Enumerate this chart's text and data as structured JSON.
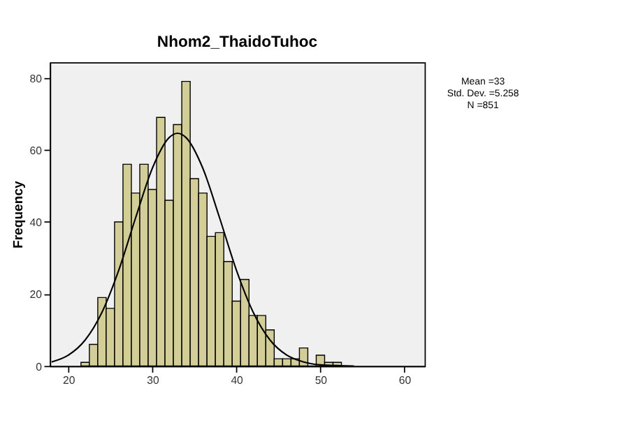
{
  "chart_data": {
    "type": "histogram",
    "title": "Nhom2_ThaidoTuhoc",
    "ylabel": "Frequency",
    "bins": [
      21.5,
      22.5,
      23.5,
      24.5,
      25.5,
      26.5,
      27.5,
      28.5,
      29.5,
      30.5,
      31.5,
      32.5,
      33.5,
      34.5,
      35.5,
      36.5,
      37.5,
      38.5,
      39.5,
      40.5,
      41.5,
      42.5,
      43.5,
      44.5,
      45.5,
      46.5,
      47.5,
      48.5,
      49.5,
      50.5,
      51.5,
      52.5
    ],
    "values": [
      1,
      6,
      19,
      16,
      40,
      56,
      48,
      56,
      49,
      69,
      46,
      67,
      79,
      52,
      48,
      36,
      37,
      29,
      18,
      24,
      14,
      14,
      10,
      2,
      2,
      2,
      5,
      0,
      3,
      1,
      1
    ],
    "color": "#d3ce98",
    "series": [
      {
        "type": "line",
        "color": "#000000",
        "x": [
          18,
          20,
          22,
          24,
          26,
          28,
          30,
          32,
          33,
          34,
          36,
          38,
          40,
          42,
          44,
          46,
          48,
          50,
          52,
          54
        ],
        "values": [
          1.1,
          3.0,
          7.2,
          14.9,
          26.6,
          41.1,
          54.9,
          63.4,
          64.6,
          63.4,
          54.9,
          41.1,
          26.6,
          14.9,
          7.2,
          3.0,
          1.1,
          0.3,
          0.1,
          0.0
        ]
      }
    ],
    "xlim": [
      17.8,
      62.4
    ],
    "xticks": [
      20,
      30,
      40,
      50,
      60
    ],
    "ylim": [
      0,
      84.3
    ],
    "yticks": [
      0,
      20,
      40,
      60,
      80
    ],
    "grid": false,
    "annotations": [
      "Mean =33",
      "Std. Dev. =5.258",
      "N =851"
    ]
  }
}
